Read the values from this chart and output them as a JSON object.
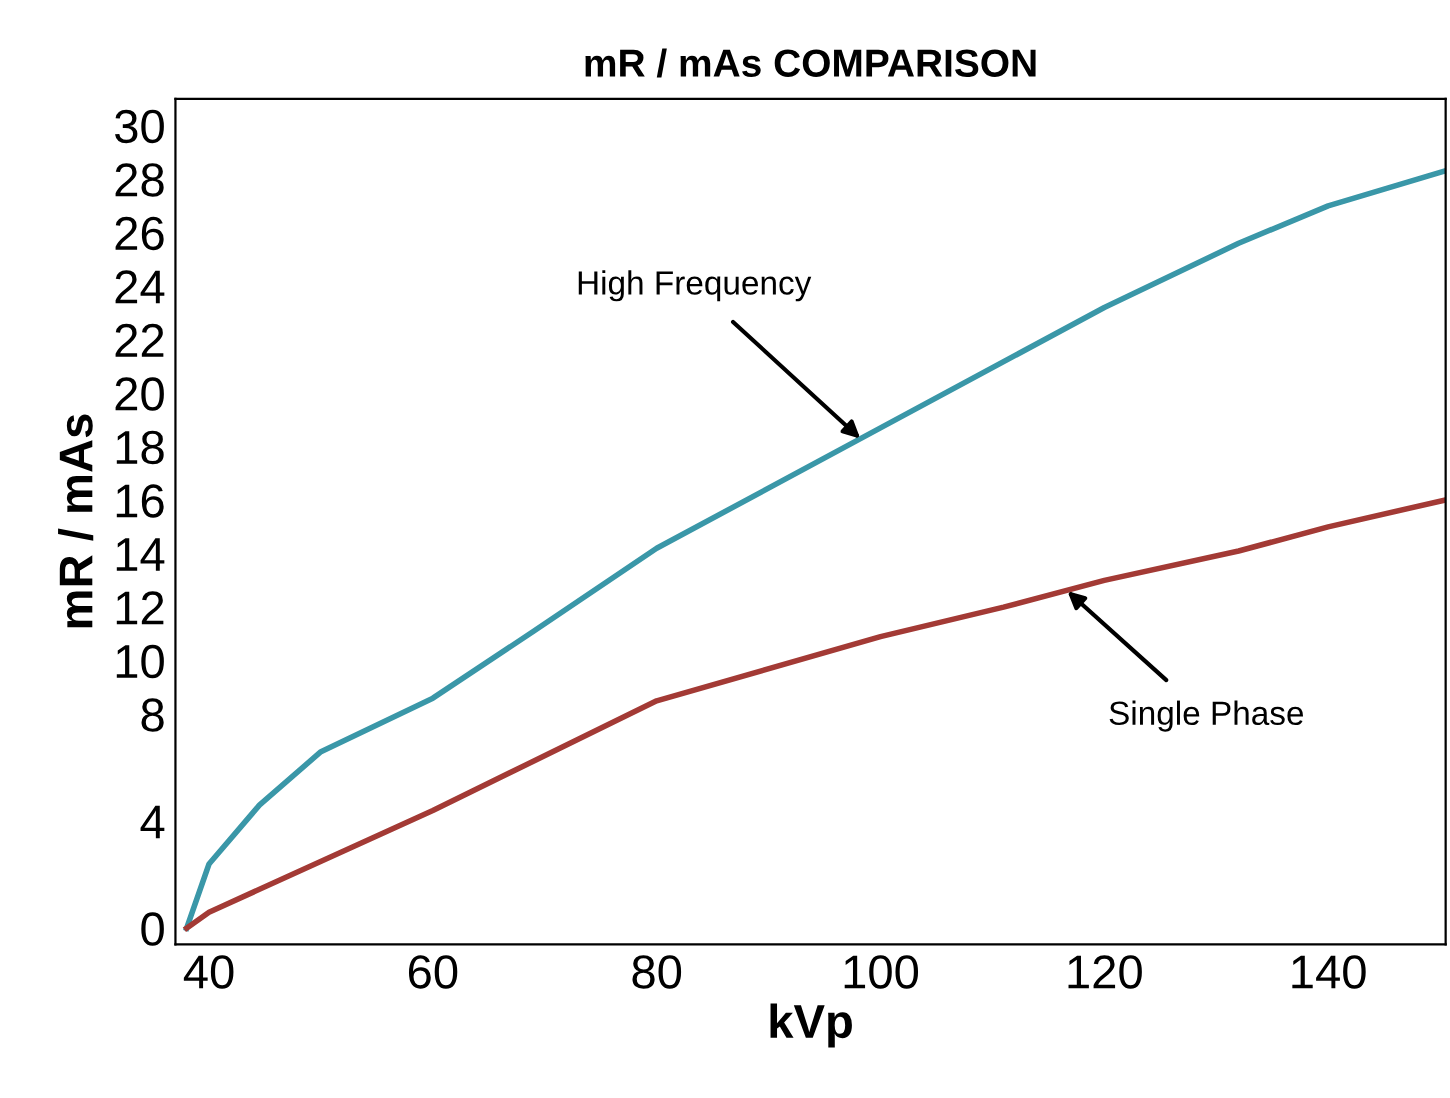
{
  "chart_data": {
    "type": "line",
    "title": "mR / mAs COMPARISON",
    "xlabel": "kVp",
    "ylabel": "mR / mAs",
    "xlim": [
      37,
      150.5
    ],
    "xticks": [
      40,
      60,
      80,
      100,
      120,
      140
    ],
    "ylim": [
      -0.6,
      31
    ],
    "yticks": [
      0,
      4,
      8,
      10,
      12,
      14,
      16,
      18,
      20,
      22,
      24,
      26,
      28,
      30
    ],
    "grid": false,
    "marker": "none",
    "line_style": "solid",
    "series": [
      {
        "color": "#3a97a8",
        "x": [
          38,
          40,
          44.5,
          50,
          60,
          69,
          80,
          100,
          120,
          132,
          140,
          150.4
        ],
        "values": [
          0,
          2.4,
          4.6,
          6.6,
          8.6,
          11.1,
          14.2,
          18.7,
          23.2,
          25.6,
          27.0,
          28.3
        ]
      },
      {
        "color": "#a33a35",
        "x": [
          38,
          40,
          60,
          80,
          100,
          111,
          120,
          132,
          140,
          150.4
        ],
        "values": [
          0,
          0.6,
          4.4,
          8.5,
          10.9,
          12.0,
          13.0,
          14.1,
          15.0,
          16.0
        ]
      }
    ],
    "annotations": [
      {
        "text": "High Frequency",
        "x": 98.2,
        "y": 18.3
      },
      {
        "text": "Single Phase",
        "x": 116.7,
        "y": 12.6
      }
    ]
  }
}
